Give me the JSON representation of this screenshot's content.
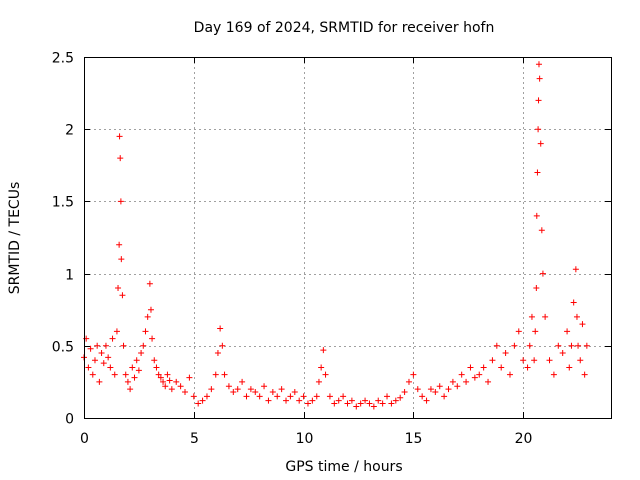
{
  "chart_data": {
    "type": "scatter",
    "title": "Day 169 of 2024, SRMTID for receiver hofn",
    "xlabel": "GPS time / hours",
    "ylabel": "SRMTID / TECUs",
    "xlim": [
      0,
      24
    ],
    "ylim": [
      0,
      2.5
    ],
    "xticks": [
      0,
      5,
      10,
      15,
      20
    ],
    "yticks": [
      0,
      0.5,
      1,
      1.5,
      2,
      2.5
    ],
    "xtick_labels": [
      "0",
      "5",
      "10",
      "15",
      "20"
    ],
    "ytick_labels": [
      "0",
      "0.5",
      "1",
      "1.5",
      "2",
      "2.5"
    ],
    "grid": true,
    "marker": "+",
    "series": [
      {
        "name": "SRMTID",
        "color": "#ff0000",
        "x": [
          0.0,
          0.1,
          0.2,
          0.3,
          0.4,
          0.5,
          0.6,
          0.7,
          0.8,
          0.9,
          1.0,
          1.1,
          1.2,
          1.3,
          1.4,
          1.5,
          1.55,
          1.6,
          1.62,
          1.65,
          1.68,
          1.7,
          1.75,
          1.8,
          1.9,
          2.0,
          2.1,
          2.2,
          2.3,
          2.4,
          2.5,
          2.6,
          2.7,
          2.8,
          2.9,
          3.0,
          3.05,
          3.1,
          3.2,
          3.3,
          3.4,
          3.5,
          3.6,
          3.7,
          3.8,
          3.9,
          4.0,
          4.2,
          4.4,
          4.6,
          4.8,
          5.0,
          5.2,
          5.4,
          5.6,
          5.8,
          6.0,
          6.1,
          6.2,
          6.3,
          6.4,
          6.6,
          6.8,
          7.0,
          7.2,
          7.4,
          7.6,
          7.8,
          8.0,
          8.2,
          8.4,
          8.6,
          8.8,
          9.0,
          9.2,
          9.4,
          9.6,
          9.8,
          10.0,
          10.2,
          10.4,
          10.6,
          10.7,
          10.8,
          10.9,
          11.0,
          11.2,
          11.4,
          11.6,
          11.8,
          12.0,
          12.2,
          12.4,
          12.6,
          12.8,
          13.0,
          13.2,
          13.4,
          13.6,
          13.8,
          14.0,
          14.2,
          14.4,
          14.6,
          14.8,
          15.0,
          15.2,
          15.4,
          15.6,
          15.8,
          16.0,
          16.2,
          16.4,
          16.6,
          16.8,
          17.0,
          17.2,
          17.4,
          17.6,
          17.8,
          18.0,
          18.2,
          18.4,
          18.6,
          18.8,
          19.0,
          19.2,
          19.4,
          19.6,
          19.8,
          20.0,
          20.2,
          20.3,
          20.4,
          20.5,
          20.55,
          20.6,
          20.62,
          20.65,
          20.68,
          20.7,
          20.72,
          20.75,
          20.8,
          20.85,
          20.9,
          21.0,
          21.2,
          21.4,
          21.6,
          21.8,
          22.0,
          22.1,
          22.2,
          22.3,
          22.4,
          22.45,
          22.5,
          22.6,
          22.7,
          22.8,
          22.9
        ],
        "y": [
          0.42,
          0.55,
          0.35,
          0.48,
          0.3,
          0.4,
          0.5,
          0.25,
          0.45,
          0.38,
          0.5,
          0.42,
          0.35,
          0.55,
          0.3,
          0.6,
          0.9,
          1.2,
          1.95,
          1.8,
          1.5,
          1.1,
          0.85,
          0.5,
          0.3,
          0.25,
          0.2,
          0.35,
          0.28,
          0.4,
          0.33,
          0.45,
          0.5,
          0.6,
          0.7,
          0.93,
          0.75,
          0.55,
          0.4,
          0.35,
          0.3,
          0.28,
          0.25,
          0.22,
          0.3,
          0.26,
          0.2,
          0.25,
          0.22,
          0.18,
          0.28,
          0.15,
          0.1,
          0.12,
          0.15,
          0.2,
          0.3,
          0.45,
          0.62,
          0.5,
          0.3,
          0.22,
          0.18,
          0.2,
          0.25,
          0.15,
          0.2,
          0.18,
          0.15,
          0.22,
          0.12,
          0.18,
          0.15,
          0.2,
          0.12,
          0.15,
          0.18,
          0.12,
          0.15,
          0.1,
          0.12,
          0.15,
          0.25,
          0.35,
          0.47,
          0.3,
          0.15,
          0.1,
          0.12,
          0.15,
          0.1,
          0.12,
          0.08,
          0.1,
          0.12,
          0.1,
          0.08,
          0.12,
          0.1,
          0.15,
          0.1,
          0.12,
          0.14,
          0.18,
          0.25,
          0.3,
          0.2,
          0.15,
          0.12,
          0.2,
          0.18,
          0.22,
          0.15,
          0.2,
          0.25,
          0.22,
          0.3,
          0.25,
          0.35,
          0.28,
          0.3,
          0.35,
          0.25,
          0.4,
          0.5,
          0.35,
          0.45,
          0.3,
          0.5,
          0.6,
          0.4,
          0.35,
          0.5,
          0.7,
          0.4,
          0.6,
          0.9,
          1.4,
          1.7,
          2.0,
          2.2,
          2.45,
          2.35,
          1.9,
          1.3,
          1.0,
          0.7,
          0.4,
          0.3,
          0.5,
          0.45,
          0.6,
          0.35,
          0.5,
          0.8,
          1.03,
          0.7,
          0.5,
          0.4,
          0.65,
          0.3,
          0.5
        ]
      }
    ]
  }
}
